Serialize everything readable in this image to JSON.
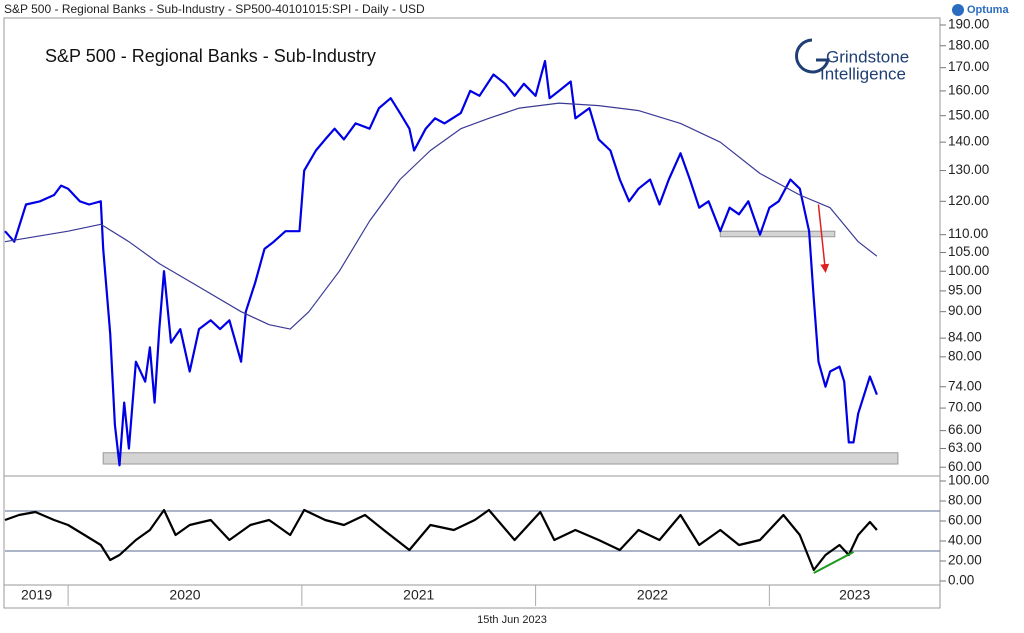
{
  "header": "S&P 500 - Regional Banks - Sub-Industry - SP500-40101015:SPI - Daily - USD",
  "brand": "Optuma",
  "logo": {
    "line1": "Grindstone",
    "line2": "Intelligence"
  },
  "footer": "15th Jun 2023",
  "chart_data": [
    {
      "type": "line",
      "title": "S&P 500 - Regional Banks - Sub-Industry",
      "log_scale": true,
      "xlim": [
        2019.73,
        2023.73
      ],
      "ylim": [
        59.1,
        193.5
      ],
      "yticks": [
        {
          "value": 60,
          "label": "60.00"
        },
        {
          "value": 63,
          "label": "63.00"
        },
        {
          "value": 66,
          "label": "66.00"
        },
        {
          "value": 70,
          "label": "70.00"
        },
        {
          "value": 74,
          "label": "74.00"
        },
        {
          "value": 80,
          "label": "80.00"
        },
        {
          "value": 84,
          "label": "84.00"
        },
        {
          "value": 90,
          "label": "90.00"
        },
        {
          "value": 95,
          "label": "95.00"
        },
        {
          "value": 100,
          "label": "100.00"
        },
        {
          "value": 105,
          "label": "105.00"
        },
        {
          "value": 110,
          "label": "110.00"
        },
        {
          "value": 120,
          "label": "120.00"
        },
        {
          "value": 130,
          "label": "130.00"
        },
        {
          "value": 140,
          "label": "140.00"
        },
        {
          "value": 150,
          "label": "150.00"
        },
        {
          "value": 160,
          "label": "160.00"
        },
        {
          "value": 170,
          "label": "170.00"
        },
        {
          "value": 180,
          "label": "180.00"
        },
        {
          "value": 190,
          "label": "190.00"
        }
      ],
      "zones": [
        {
          "x": [
            2020.15,
            2023.55
          ],
          "y": [
            60.5,
            62.3
          ],
          "color": "#d4d4d4"
        },
        {
          "x": [
            2022.79,
            2023.28
          ],
          "y": [
            109.4,
            111
          ],
          "color": "#d4d4d4"
        }
      ],
      "arrows": [
        {
          "x": [
            2023.21,
            2023.24
          ],
          "y": [
            119,
            100
          ],
          "color": "#e02020"
        }
      ],
      "series": [
        {
          "color": "#0000e6",
          "x": [
            2019.73,
            2019.77,
            2019.82,
            2019.88,
            2019.94,
            2019.97,
            2020.0,
            2020.05,
            2020.09,
            2020.14,
            2020.15,
            2020.18,
            2020.2,
            2020.22,
            2020.24,
            2020.26,
            2020.29,
            2020.33,
            2020.35,
            2020.37,
            2020.39,
            2020.41,
            2020.44,
            2020.48,
            2020.52,
            2020.56,
            2020.61,
            2020.65,
            2020.69,
            2020.74,
            2020.76,
            2020.8,
            2020.84,
            2020.88,
            2020.93,
            2020.99,
            2021.01,
            2021.06,
            2021.1,
            2021.14,
            2021.18,
            2021.23,
            2021.29,
            2021.33,
            2021.38,
            2021.42,
            2021.46,
            2021.48,
            2021.53,
            2021.57,
            2021.61,
            2021.68,
            2021.72,
            2021.76,
            2021.82,
            2021.87,
            2021.91,
            2021.95,
            2022.0,
            2022.04,
            2022.06,
            2022.1,
            2022.15,
            2022.17,
            2022.23,
            2022.27,
            2022.32,
            2022.36,
            2022.4,
            2022.44,
            2022.49,
            2022.53,
            2022.57,
            2022.62,
            2022.66,
            2022.7,
            2022.74,
            2022.79,
            2022.83,
            2022.87,
            2022.91,
            2022.96,
            2023.0,
            2023.04,
            2023.09,
            2023.13,
            2023.17,
            2023.19,
            2023.21,
            2023.24,
            2023.26,
            2023.3,
            2023.32,
            2023.34,
            2023.36,
            2023.38,
            2023.43,
            2023.46
          ],
          "values": [
            111,
            108,
            119,
            120,
            122,
            125,
            124,
            120,
            119,
            120,
            106,
            85,
            67,
            60.3,
            71,
            63,
            79,
            75,
            82,
            71,
            86,
            100,
            83,
            86,
            77,
            86,
            88,
            86,
            88,
            79,
            90,
            97,
            106,
            108,
            111,
            111,
            130,
            137,
            141,
            145,
            141,
            147,
            145,
            153,
            157,
            151,
            145,
            137,
            145,
            149,
            147,
            151,
            160,
            158,
            167,
            163,
            158,
            163,
            158,
            173,
            157,
            160,
            164,
            149,
            153,
            141,
            137,
            127,
            120,
            124,
            127,
            119,
            127,
            136,
            127,
            118,
            120,
            111,
            118,
            116,
            120,
            110,
            118,
            120,
            127,
            124,
            111,
            93,
            79,
            74,
            77,
            78,
            75,
            64,
            64,
            69,
            76,
            72.5
          ]
        },
        {
          "color": "#3a3a96",
          "x": [
            2019.73,
            2020.0,
            2020.14,
            2020.26,
            2020.39,
            2020.56,
            2020.74,
            2020.86,
            2020.95,
            2021.03,
            2021.16,
            2021.29,
            2021.42,
            2021.55,
            2021.68,
            2021.8,
            2021.93,
            2022.1,
            2022.27,
            2022.44,
            2022.62,
            2022.79,
            2022.96,
            2023.13,
            2023.26,
            2023.38,
            2023.46
          ],
          "values": [
            108,
            111,
            113,
            108,
            102,
            96,
            90,
            87,
            86,
            90,
            100,
            114,
            127,
            137,
            145,
            149,
            153,
            155,
            154,
            152,
            147,
            140,
            129,
            122,
            118,
            108,
            104
          ]
        }
      ]
    },
    {
      "type": "line",
      "xlim": [
        2019.73,
        2023.73
      ],
      "ylim": [
        -4,
        104
      ],
      "xticks": [
        2019,
        2020,
        2021,
        2022,
        2023
      ],
      "yticks": [
        {
          "value": 0,
          "label": "0.00"
        },
        {
          "value": 20,
          "label": "20.00"
        },
        {
          "value": 40,
          "label": "40.00"
        },
        {
          "value": 60,
          "label": "60.00"
        },
        {
          "value": 80,
          "label": "80.00"
        },
        {
          "value": 100,
          "label": "100.00"
        }
      ],
      "levels": [
        30,
        70
      ],
      "lines": [
        {
          "x": [
            2023.19,
            2023.36
          ],
          "y": [
            8,
            29
          ],
          "color": "#1a9a1a"
        }
      ],
      "series": [
        {
          "color": "#000000",
          "x": [
            2019.73,
            2019.79,
            2019.86,
            2019.94,
            2020.0,
            2020.07,
            2020.14,
            2020.18,
            2020.22,
            2020.29,
            2020.35,
            2020.41,
            2020.46,
            2020.52,
            2020.61,
            2020.69,
            2020.78,
            2020.86,
            2020.95,
            2021.01,
            2021.1,
            2021.18,
            2021.27,
            2021.35,
            2021.46,
            2021.55,
            2021.65,
            2021.74,
            2021.8,
            2021.91,
            2022.02,
            2022.08,
            2022.17,
            2022.27,
            2022.36,
            2022.44,
            2022.53,
            2022.62,
            2022.7,
            2022.79,
            2022.87,
            2022.96,
            2023.06,
            2023.13,
            2023.19,
            2023.24,
            2023.3,
            2023.34,
            2023.38,
            2023.43,
            2023.46
          ],
          "values": [
            61,
            66,
            69,
            61,
            56,
            46,
            36,
            21,
            26,
            41,
            51,
            71,
            46,
            56,
            61,
            41,
            56,
            61,
            46,
            71,
            61,
            56,
            66,
            51,
            31,
            56,
            51,
            61,
            71,
            41,
            69,
            41,
            51,
            41,
            31,
            51,
            41,
            66,
            36,
            51,
            36,
            41,
            66,
            46,
            11,
            26,
            36,
            26,
            46,
            59,
            51
          ]
        }
      ]
    }
  ]
}
